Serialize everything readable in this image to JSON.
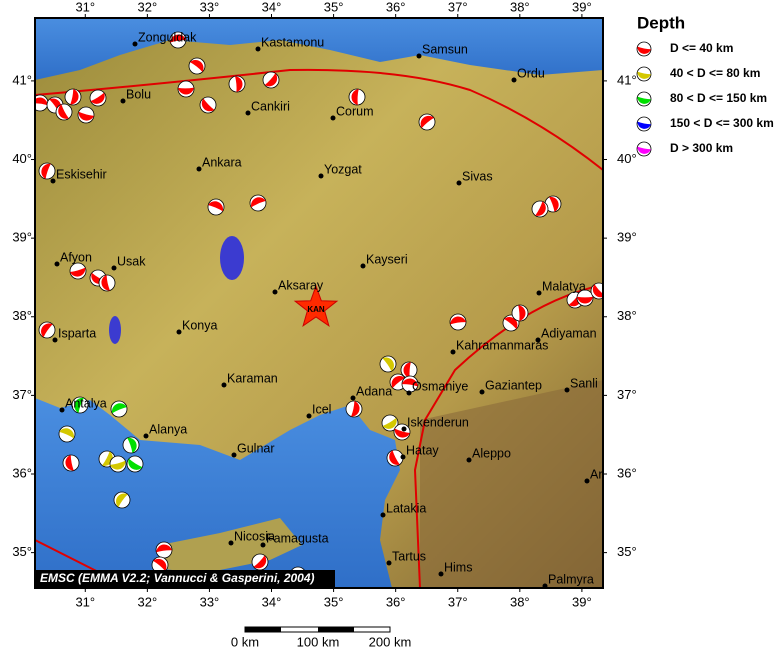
{
  "map": {
    "lonlim": [
      30.19,
      39.34
    ],
    "latlim": [
      34.55,
      41.8
    ],
    "lonticks": [
      {
        "value": 31,
        "label": "31°"
      },
      {
        "value": 32,
        "label": "32°"
      },
      {
        "value": 33,
        "label": "33°"
      },
      {
        "value": 34,
        "label": "34°"
      },
      {
        "value": 35,
        "label": "35°"
      },
      {
        "value": 36,
        "label": "36°"
      },
      {
        "value": 37,
        "label": "37°"
      },
      {
        "value": 38,
        "label": "38°"
      },
      {
        "value": 39,
        "label": "39°"
      }
    ],
    "latticks": [
      {
        "value": 35,
        "label": "35°"
      },
      {
        "value": 36,
        "label": "36°"
      },
      {
        "value": 37,
        "label": "37°"
      },
      {
        "value": 38,
        "label": "38°"
      },
      {
        "value": 39,
        "label": "39°"
      },
      {
        "value": 40,
        "label": "40°"
      },
      {
        "value": 41,
        "label": "41°"
      }
    ],
    "cities": [
      "Zonguldak",
      "Kastamonu",
      "Samsun",
      "Ordu",
      "Bolu",
      "Cankiri",
      "Corum",
      "Ankara",
      "Yozgat",
      "Sivas",
      "Eskisehir",
      "Afyon",
      "Usak",
      "Kayseri",
      "Aksaray",
      "Malatya",
      "Konya",
      "Isparta",
      "Adiyaman",
      "Kahramanmaras",
      "Karaman",
      "Osmaniye",
      "Gaziantep",
      "Sanli",
      "Adana",
      "Antalya",
      "Icel",
      "Alanya",
      "Iskenderun",
      "Hatay",
      "Aleppo",
      "Gulnar",
      "Ar",
      "Latakia",
      "Nicosia",
      "Famagusta",
      "Tartus",
      "Hims",
      "Palmyra"
    ],
    "epicenter": "KAN",
    "credit": "EMSC (EMMA V2.2; Vannucci & Gasperini, 2004)",
    "scale": [
      "0 km",
      "100 km",
      "200 km"
    ]
  },
  "legend": {
    "title": "Depth",
    "items": [
      {
        "label": "D <= 40 km",
        "color": "#ff0000"
      },
      {
        "label": "40 < D <= 80 km",
        "color": "#d4c800"
      },
      {
        "label": "80 < D <= 150 km",
        "color": "#00e000"
      },
      {
        "label": "150 < D <= 300 km",
        "color": "#0000ff"
      },
      {
        "label": "D > 300 km",
        "color": "#ff00ff"
      }
    ]
  }
}
